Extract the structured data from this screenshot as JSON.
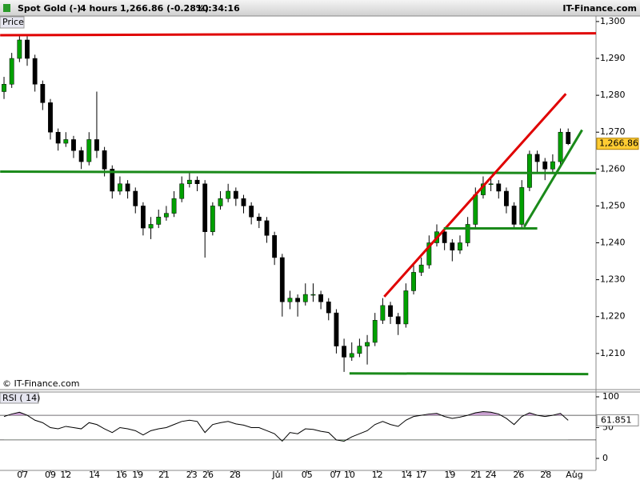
{
  "chart_data": {
    "type": "candlestick",
    "header": {
      "instrument": "Spot Gold (-)",
      "interval": "4 hours",
      "price": "1,266.86 (-0.28%)",
      "time": "10:34:16",
      "brand": "IT-Finance.com"
    },
    "panel_label": "Price",
    "copyright": "© IT-Finance.com",
    "xlim": [
      -0.52,
      76.6
    ],
    "xticks": [
      {
        "value": 2.4,
        "label": "07"
      },
      {
        "value": 6,
        "label": "09"
      },
      {
        "value": 8,
        "label": "12"
      },
      {
        "value": 11.7,
        "label": "14"
      },
      {
        "value": 15.2,
        "label": "16"
      },
      {
        "value": 17.3,
        "label": "19"
      },
      {
        "value": 20.7,
        "label": "21"
      },
      {
        "value": 24.3,
        "label": "23"
      },
      {
        "value": 26.4,
        "label": "26"
      },
      {
        "value": 29.9,
        "label": "28"
      },
      {
        "value": 35.4,
        "label": "Jul"
      },
      {
        "value": 39.2,
        "label": "05"
      },
      {
        "value": 42.9,
        "label": "07"
      },
      {
        "value": 44.7,
        "label": "10"
      },
      {
        "value": 48.3,
        "label": "12"
      },
      {
        "value": 52.1,
        "label": "14"
      },
      {
        "value": 54,
        "label": "17"
      },
      {
        "value": 57.7,
        "label": "19"
      },
      {
        "value": 61.1,
        "label": "21"
      },
      {
        "value": 63,
        "label": "24"
      },
      {
        "value": 66.6,
        "label": "26"
      },
      {
        "value": 70.1,
        "label": "28"
      },
      {
        "value": 73.8,
        "label": "Aug"
      }
    ],
    "ylim": [
      1200.2,
      1301.5
    ],
    "yticks": [
      {
        "value": 1210,
        "label": "1,210"
      },
      {
        "value": 1220,
        "label": "1,220"
      },
      {
        "value": 1230,
        "label": "1,230"
      },
      {
        "value": 1240,
        "label": "1,240"
      },
      {
        "value": 1250,
        "label": "1,250"
      },
      {
        "value": 1260,
        "label": "1,260"
      },
      {
        "value": 1270,
        "label": "1,270"
      },
      {
        "value": 1280,
        "label": "1,280"
      },
      {
        "value": 1290,
        "label": "1,290"
      },
      {
        "value": 1300,
        "label": "1,300"
      }
    ],
    "up_color": "#00a000",
    "down_color": "#000000",
    "ohlc": [
      [
        1281,
        1285,
        1279,
        1283
      ],
      [
        1283,
        1291.5,
        1282,
        1290
      ],
      [
        1290,
        1296,
        1289,
        1295
      ],
      [
        1295,
        1296,
        1288,
        1290
      ],
      [
        1290,
        1291,
        1281,
        1283
      ],
      [
        1283,
        1284,
        1276,
        1278
      ],
      [
        1278,
        1279,
        1268,
        1270
      ],
      [
        1270,
        1271,
        1265,
        1267
      ],
      [
        1267,
        1270,
        1266,
        1268
      ],
      [
        1268,
        1269,
        1263,
        1265
      ],
      [
        1265,
        1266,
        1260,
        1262
      ],
      [
        1262,
        1270,
        1261,
        1268
      ],
      [
        1268,
        1281,
        1263,
        1265
      ],
      [
        1265,
        1266,
        1258,
        1260
      ],
      [
        1260,
        1261,
        1252,
        1254
      ],
      [
        1254,
        1258,
        1253,
        1256
      ],
      [
        1256,
        1257,
        1252,
        1254
      ],
      [
        1254,
        1255,
        1248,
        1250
      ],
      [
        1250,
        1251,
        1242,
        1244
      ],
      [
        1244,
        1247,
        1241,
        1245
      ],
      [
        1245,
        1249,
        1244,
        1247
      ],
      [
        1247,
        1250,
        1246,
        1248
      ],
      [
        1248,
        1254,
        1247,
        1252
      ],
      [
        1252,
        1258,
        1251,
        1256
      ],
      [
        1256,
        1259,
        1255,
        1257
      ],
      [
        1257,
        1258,
        1254,
        1256
      ],
      [
        1256,
        1257,
        1236,
        1243
      ],
      [
        1243,
        1251,
        1242,
        1250
      ],
      [
        1250,
        1254,
        1249,
        1252
      ],
      [
        1252,
        1256,
        1251,
        1254
      ],
      [
        1254,
        1255,
        1250,
        1252
      ],
      [
        1252,
        1253,
        1248,
        1250
      ],
      [
        1250,
        1251,
        1245,
        1247
      ],
      [
        1247,
        1248,
        1244,
        1246
      ],
      [
        1246,
        1247,
        1240,
        1242
      ],
      [
        1242,
        1243,
        1234,
        1236
      ],
      [
        1236,
        1237,
        1220,
        1224
      ],
      [
        1224,
        1227,
        1222,
        1225
      ],
      [
        1225,
        1226,
        1220,
        1224
      ],
      [
        1224,
        1229,
        1223,
        1226
      ],
      [
        1226,
        1229,
        1224,
        1226
      ],
      [
        1226,
        1227,
        1222,
        1224
      ],
      [
        1224,
        1225,
        1219,
        1221
      ],
      [
        1221,
        1222,
        1210,
        1212
      ],
      [
        1212,
        1214,
        1205,
        1209
      ],
      [
        1209,
        1213,
        1208,
        1210
      ],
      [
        1210,
        1214,
        1209,
        1212
      ],
      [
        1212,
        1215,
        1207,
        1213
      ],
      [
        1213,
        1221,
        1212,
        1219
      ],
      [
        1219,
        1225,
        1218,
        1223
      ],
      [
        1223,
        1224,
        1218,
        1220
      ],
      [
        1220,
        1221,
        1215,
        1218
      ],
      [
        1218,
        1229,
        1217,
        1227
      ],
      [
        1227,
        1234,
        1226,
        1232
      ],
      [
        1232,
        1236,
        1231,
        1234
      ],
      [
        1234,
        1242,
        1233,
        1240
      ],
      [
        1240,
        1245,
        1239,
        1243
      ],
      [
        1243,
        1244,
        1238,
        1240
      ],
      [
        1240,
        1241,
        1235,
        1238
      ],
      [
        1238,
        1242,
        1237,
        1240
      ],
      [
        1240,
        1247,
        1239,
        1245
      ],
      [
        1245,
        1255,
        1244,
        1253
      ],
      [
        1253,
        1258,
        1252,
        1256
      ],
      [
        1256,
        1258,
        1254,
        1256
      ],
      [
        1256,
        1257,
        1252,
        1254
      ],
      [
        1254,
        1255,
        1248,
        1250
      ],
      [
        1250,
        1251,
        1244,
        1245
      ],
      [
        1245,
        1257,
        1244,
        1255
      ],
      [
        1255,
        1265,
        1254,
        1264
      ],
      [
        1264,
        1265,
        1259,
        1262
      ],
      [
        1262,
        1263,
        1257,
        1260
      ],
      [
        1260,
        1264,
        1259,
        1262
      ],
      [
        1262,
        1271,
        1261,
        1270
      ],
      [
        1270,
        1271,
        1266.5,
        1266.86
      ]
    ],
    "last_label": {
      "value": 1266.86,
      "label": "1,266.86"
    },
    "trendlines": [
      {
        "color": "#e00000",
        "points": [
          [
            -0.5,
            1296.3
          ],
          [
            76.6,
            1296.8
          ]
        ]
      },
      {
        "color": "#1a8a1a",
        "points": [
          [
            -0.5,
            1259.3
          ],
          [
            76.6,
            1258.9
          ]
        ]
      },
      {
        "color": "#e00000",
        "points": [
          [
            49.2,
            1225.4
          ],
          [
            72.7,
            1280.4
          ]
        ]
      },
      {
        "color": "#1a8a1a",
        "points": [
          [
            44.7,
            1204.6
          ],
          [
            75.6,
            1204.4
          ]
        ]
      },
      {
        "color": "#1a8a1a",
        "points": [
          [
            56.9,
            1243.9
          ],
          [
            69.0,
            1243.9
          ]
        ]
      },
      {
        "color": "#1a8a1a",
        "points": [
          [
            67.3,
            1244.3
          ],
          [
            74.8,
            1270.6
          ]
        ]
      }
    ],
    "rsi": {
      "label": "RSI ( 14)",
      "ylim": [
        -19.5,
        107.8
      ],
      "yticks": [
        0,
        50,
        100
      ],
      "levels": [
        30,
        70
      ],
      "values": [
        68,
        72,
        75,
        70,
        62,
        58,
        50,
        48,
        52,
        50,
        48,
        58,
        55,
        48,
        42,
        50,
        48,
        45,
        38,
        45,
        48,
        50,
        55,
        60,
        62,
        60,
        42,
        55,
        58,
        60,
        56,
        54,
        50,
        50,
        45,
        40,
        28,
        42,
        40,
        48,
        47,
        44,
        42,
        30,
        28,
        35,
        40,
        45,
        55,
        60,
        55,
        52,
        62,
        68,
        70,
        72,
        73,
        68,
        65,
        67,
        70,
        74,
        76,
        75,
        72,
        65,
        55,
        68,
        74,
        70,
        68,
        70,
        73,
        61.851
      ],
      "value_label": "61.851"
    }
  }
}
